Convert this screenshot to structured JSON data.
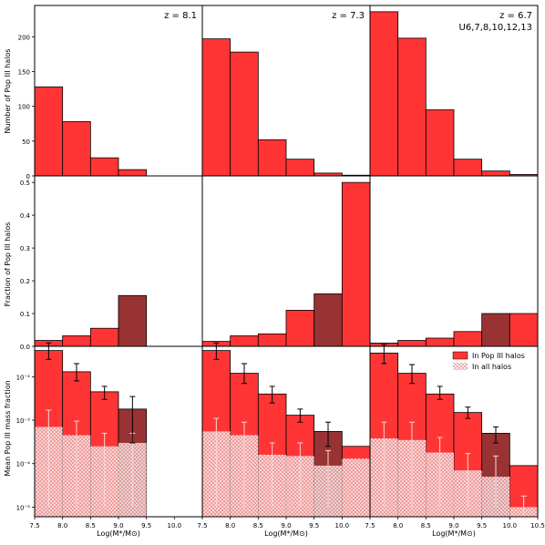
{
  "chart_data": {
    "type": "bar",
    "xlabel": "Log(M*/M⊙)",
    "colors": {
      "red": "#ff3535",
      "dark": "#993333",
      "hatch": "#e8a8a8"
    },
    "rows": [
      {
        "ylabel": "Number of Pop III halos",
        "ylim": [
          0,
          245
        ],
        "yticks": [
          "0",
          "50",
          "100",
          "150",
          "200"
        ],
        "ytick_values": [
          0,
          50,
          100,
          150,
          200
        ],
        "scale": "linear"
      },
      {
        "ylabel": "Fraction of Pop III halos",
        "ylim": [
          0,
          0.52
        ],
        "yticks": [
          "0.0",
          "0.1",
          "0.2",
          "0.3",
          "0.4",
          "0.5"
        ],
        "ytick_values": [
          0,
          0.1,
          0.2,
          0.3,
          0.4,
          0.5
        ],
        "scale": "linear"
      },
      {
        "ylabel": "Mean Pop III mass fraction",
        "ylim": [
          6e-06,
          0.05
        ],
        "yticks": [
          "10⁻⁵",
          "10⁻⁴",
          "10⁻³",
          "10⁻²"
        ],
        "ytick_values": [
          1e-05,
          0.0001,
          0.001,
          0.01
        ],
        "scale": "log"
      }
    ],
    "legend": {
      "position": "top-right",
      "entries": [
        "In Pop III halos",
        "In all halos"
      ]
    },
    "panels": [
      {
        "label": "z = 8.1",
        "extra_label": "",
        "xlim": [
          7.5,
          10.5
        ],
        "xticks": [
          "7.5",
          "8.0",
          "8.5",
          "9.0",
          "9.5",
          "10.0"
        ],
        "xtick_values": [
          7.5,
          8.0,
          8.5,
          9.0,
          9.5,
          10.0
        ],
        "bins": [
          7.5,
          8.0,
          8.5,
          9.0,
          9.5
        ],
        "counts": [
          128,
          78,
          26,
          9
        ],
        "fractions": [
          0.018,
          0.032,
          0.055,
          0.155
        ],
        "mean_pop3": [
          0.04,
          0.013,
          0.0045,
          0.0018
        ],
        "mean_pop3_err": [
          [
            0.025,
            0.06
          ],
          [
            0.008,
            0.02
          ],
          [
            0.003,
            0.006
          ],
          [
            0.0003,
            0.0035
          ]
        ],
        "mean_all": [
          0.0007,
          0.00045,
          0.00025,
          0.0003
        ],
        "mean_all_err": [
          [
            1e-05,
            0.0017
          ],
          [
            1e-05,
            0.00095
          ],
          [
            1e-05,
            0.0005
          ],
          [
            1e-05,
            0.0005
          ]
        ]
      },
      {
        "label": "z = 7.3",
        "extra_label": "",
        "xlim": [
          7.5,
          10.5
        ],
        "xticks": [
          "7.5",
          "8.0",
          "8.5",
          "9.0",
          "9.5",
          "10.0"
        ],
        "xtick_values": [
          7.5,
          8.0,
          8.5,
          9.0,
          9.5,
          10.0
        ],
        "bins": [
          7.5,
          8.0,
          8.5,
          9.0,
          9.5,
          10.0,
          10.5
        ],
        "counts": [
          197,
          178,
          52,
          24,
          4,
          1
        ],
        "fractions": [
          0.015,
          0.032,
          0.038,
          0.11,
          0.16,
          0.5
        ],
        "mean_pop3": [
          0.04,
          0.012,
          0.004,
          0.0013,
          0.00055,
          0.00025
        ],
        "mean_pop3_err": [
          [
            0.025,
            0.06
          ],
          [
            0.007,
            0.02
          ],
          [
            0.0025,
            0.006
          ],
          [
            0.0009,
            0.0018
          ],
          [
            0.00025,
            0.0009
          ],
          null
        ],
        "mean_all": [
          0.00055,
          0.00045,
          0.00016,
          0.00015,
          9e-05,
          0.00013
        ],
        "mean_all_err": [
          [
            1e-05,
            0.0011
          ],
          [
            1e-05,
            0.0009
          ],
          [
            1e-05,
            0.0003
          ],
          [
            1e-05,
            0.0003
          ],
          [
            1e-05,
            0.0002
          ],
          null
        ]
      },
      {
        "label": "z = 6.7",
        "extra_label": "U6,7,8,10,12,13",
        "xlim": [
          7.5,
          10.5
        ],
        "xticks": [
          "7.5",
          "8.0",
          "8.5",
          "9.0",
          "9.5",
          "10.0",
          "10.5"
        ],
        "xtick_values": [
          7.5,
          8.0,
          8.5,
          9.0,
          9.5,
          10.0,
          10.5
        ],
        "bins": [
          7.5,
          8.0,
          8.5,
          9.0,
          9.5,
          10.0,
          10.5
        ],
        "counts": [
          236,
          198,
          95,
          24,
          7,
          2
        ],
        "fractions": [
          0.01,
          0.018,
          0.025,
          0.045,
          0.1,
          0.1
        ],
        "mean_pop3": [
          0.035,
          0.012,
          0.004,
          0.0015,
          0.0005,
          9e-05
        ],
        "mean_pop3_err": [
          [
            0.02,
            0.055
          ],
          [
            0.007,
            0.019
          ],
          [
            0.003,
            0.006
          ],
          [
            0.0011,
            0.002
          ],
          [
            0.0003,
            0.0007
          ],
          null
        ],
        "mean_all": [
          0.00038,
          0.00035,
          0.00018,
          7e-05,
          5e-05,
          1e-05
        ],
        "mean_all_err": [
          [
            1e-05,
            0.0009
          ],
          [
            1e-05,
            0.0009
          ],
          [
            1e-05,
            0.0004
          ],
          [
            1e-05,
            0.00017
          ],
          [
            1e-05,
            0.00015
          ],
          [
            6e-06,
            1.8e-05
          ]
        ]
      }
    ]
  }
}
